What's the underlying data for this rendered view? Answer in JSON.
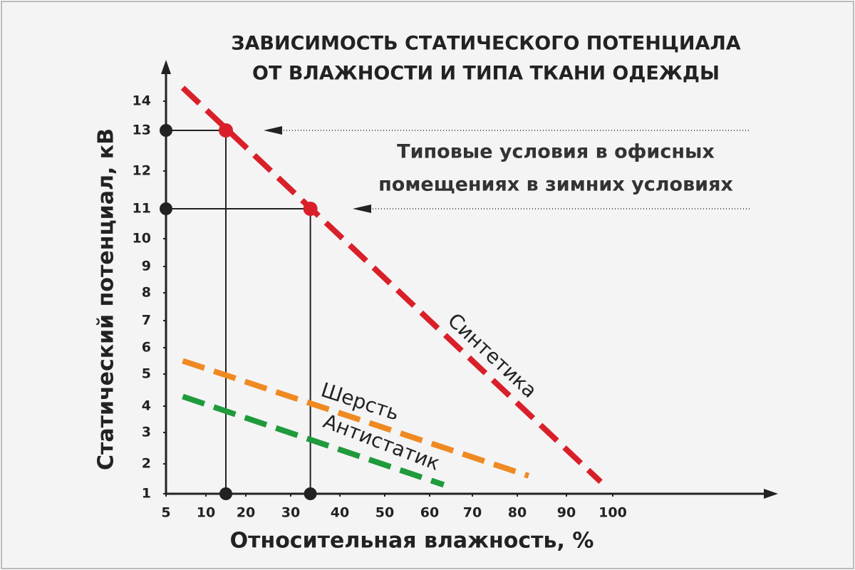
{
  "chart_data": {
    "type": "line",
    "title": [
      "ЗАВИСИМОСТЬ СТАТИЧЕСКОГО ПОТЕНЦИАЛА",
      "ОТ ВЛАЖНОСТИ И ТИПА ТКАНИ ОДЕЖДЫ"
    ],
    "annotation": [
      "Типовые условия в офисных",
      "помещениях в зимних условиях"
    ],
    "x_label": "Относительная влажность, %",
    "y_label": "Статический потенциал, кВ",
    "xticks": [
      5,
      10,
      20,
      30,
      40,
      50,
      60,
      70,
      80,
      90,
      100
    ],
    "yticks": [
      1,
      2,
      3,
      4,
      5,
      6,
      7,
      8,
      9,
      10,
      11,
      12,
      13,
      14
    ],
    "series": [
      {
        "name": "Синтетика",
        "color": "#d9202a",
        "x": [
          7.1,
          97.4
        ],
        "values": [
          14.46,
          1.4
        ]
      },
      {
        "name": "Шерсть",
        "color": "#ef8a22",
        "x": [
          7.1,
          82.3
        ],
        "values": [
          5.5,
          1.6
        ]
      },
      {
        "name": "Антистатик",
        "color": "#1f9a3c",
        "x": [
          7.1,
          63.3
        ],
        "values": [
          4.3,
          1.3
        ]
      }
    ],
    "marked_points": {
      "color": "#d9202a",
      "x": [
        15,
        34
      ],
      "values": [
        13,
        11
      ]
    }
  }
}
